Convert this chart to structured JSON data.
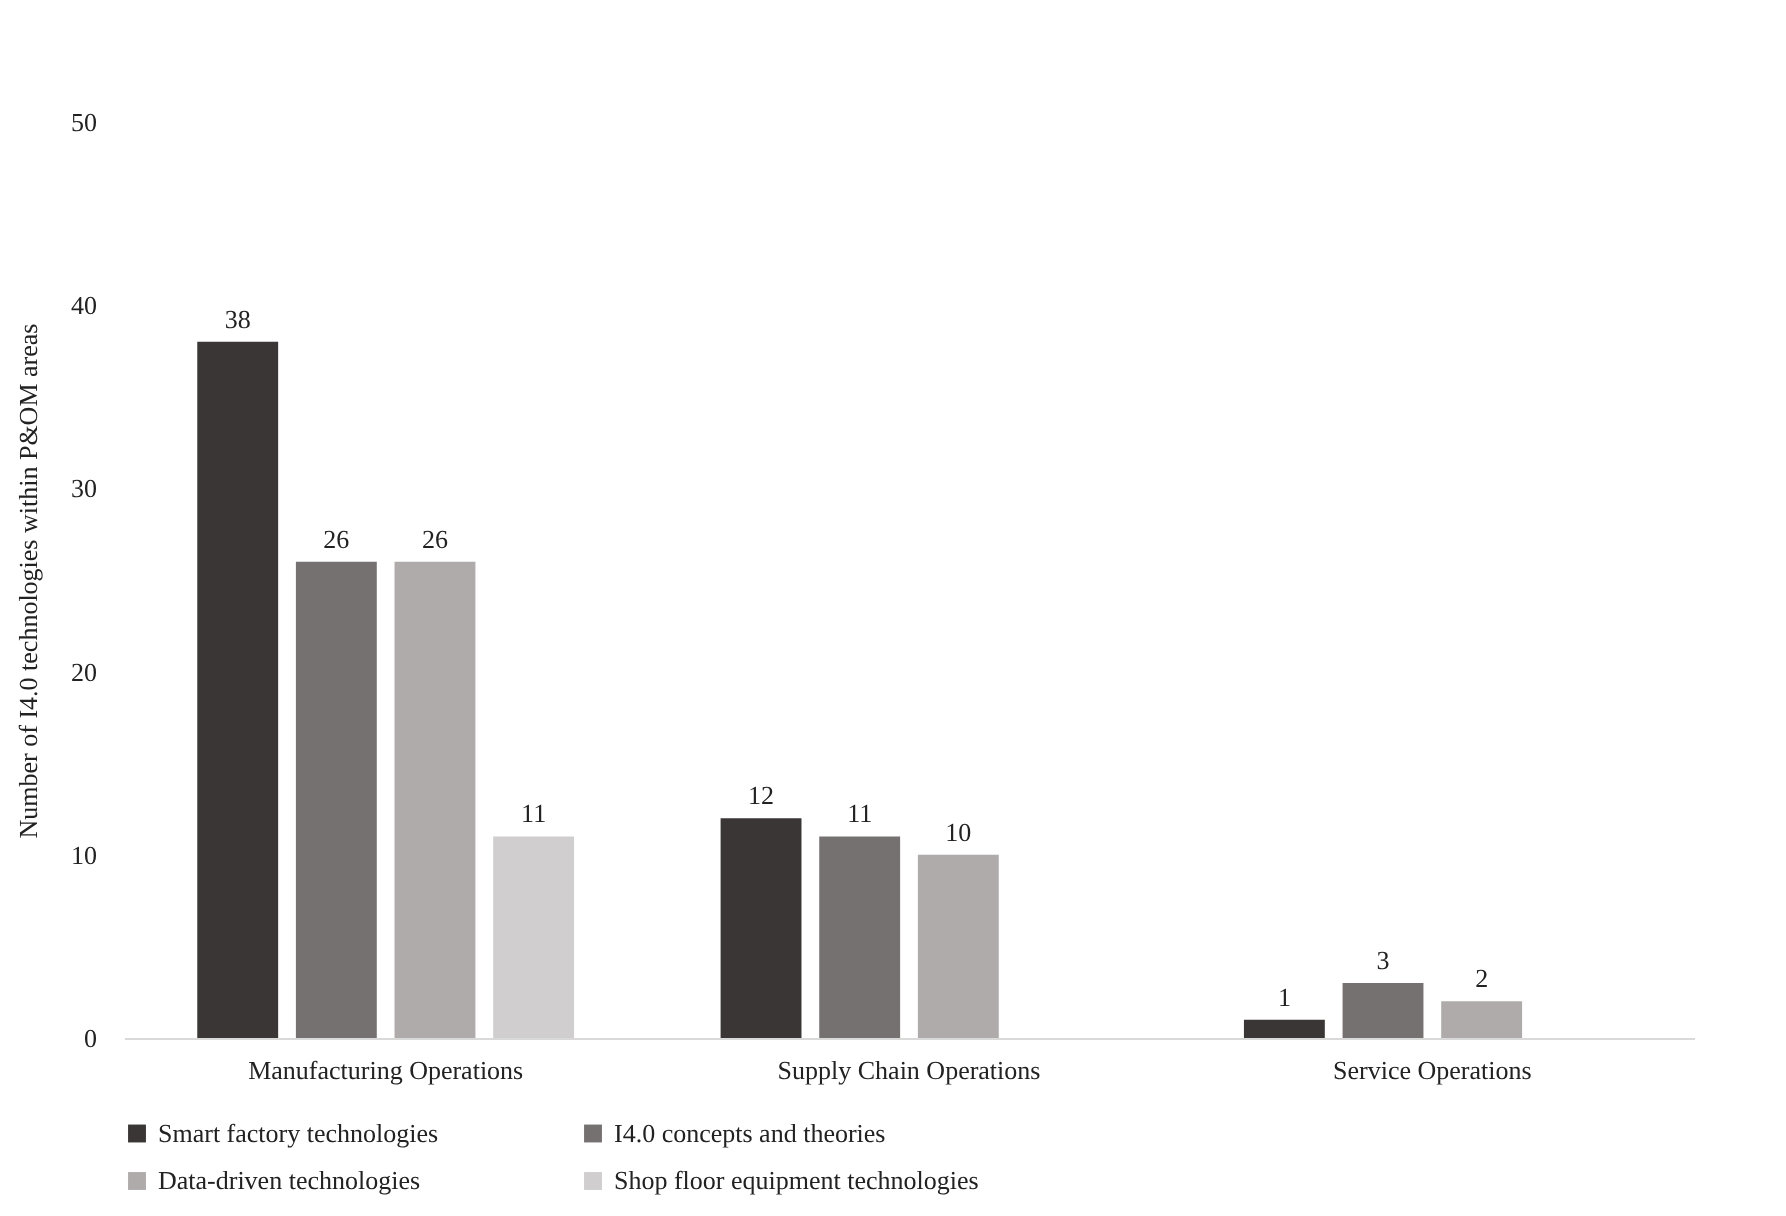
{
  "chart_data": {
    "type": "bar",
    "ylabel": "Number of I4.0 technologies within P&OM areas",
    "categories": [
      "Manufacturing Operations",
      "Supply Chain Operations",
      "Service Operations"
    ],
    "series": [
      {
        "name": "Smart factory technologies",
        "color": "#3a3635",
        "values": [
          38,
          12,
          1
        ]
      },
      {
        "name": "I4.0 concepts and theories",
        "color": "#767171",
        "values": [
          26,
          11,
          3
        ]
      },
      {
        "name": "Data-driven technologies",
        "color": "#afabab",
        "values": [
          26,
          10,
          2
        ]
      },
      {
        "name": "Shop floor equipment technologies",
        "color": "#d0cece",
        "values": [
          11,
          null,
          null
        ]
      }
    ],
    "ylim": [
      0,
      50
    ],
    "yticks": [
      0,
      10,
      20,
      30,
      40,
      50
    ],
    "grid": false,
    "legend": "bottom",
    "data_labels": true
  }
}
